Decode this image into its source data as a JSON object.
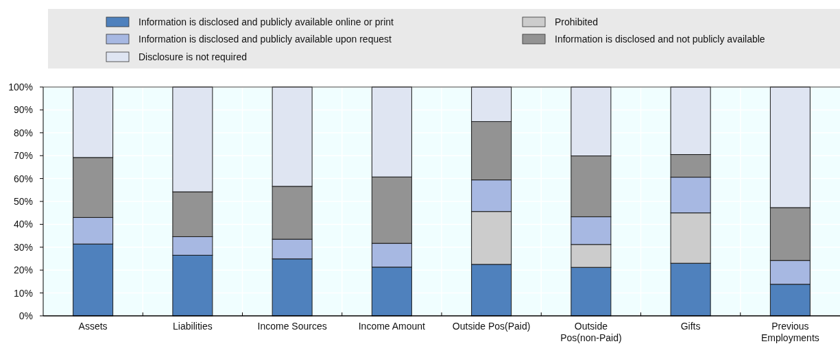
{
  "chart_data": {
    "type": "bar",
    "stacked": true,
    "categories": [
      "Assets",
      "Liabilities",
      "Income Sources",
      "Income Amount",
      "Outside Pos(Paid)",
      "Outside Pos(non-Paid)",
      "Gifts",
      "Previous Employments"
    ],
    "series": [
      {
        "name": "Information is disclosed and publicly available online or print",
        "color": "#4f81bd",
        "values": [
          31.4,
          26.5,
          24.9,
          21.3,
          22.5,
          21.2,
          23,
          13.8
        ]
      },
      {
        "name": "Prohibited",
        "color": "#cccccc",
        "values": [
          0,
          0,
          0,
          0,
          23.1,
          10,
          22,
          0
        ]
      },
      {
        "name": "Information is disclosed and publicly available upon request",
        "color": "#a7b8e2",
        "values": [
          11.6,
          8.1,
          8.6,
          10.4,
          13.8,
          12.1,
          15.6,
          10.4
        ]
      },
      {
        "name": "Information is disclosed and not publicly available",
        "color": "#939393",
        "values": [
          26.2,
          19.6,
          23.1,
          29,
          25.5,
          26.6,
          9.9,
          23.1
        ]
      },
      {
        "name": "Disclosure is not required",
        "color": "#dfe5f2",
        "values": [
          30.8,
          45.8,
          43.4,
          39.3,
          15.1,
          30.1,
          29.5,
          52.7
        ]
      }
    ],
    "ylim": [
      0,
      100
    ],
    "yticks": [
      {
        "value": 0,
        "label": "0%"
      },
      {
        "value": 10,
        "label": "10%"
      },
      {
        "value": 20,
        "label": "20%"
      },
      {
        "value": 30,
        "label": "30%"
      },
      {
        "value": 40,
        "label": "40%"
      },
      {
        "value": 50,
        "label": "50%"
      },
      {
        "value": 60,
        "label": "60%"
      },
      {
        "value": 70,
        "label": "70%"
      },
      {
        "value": 80,
        "label": "80%"
      },
      {
        "value": 90,
        "label": "90%"
      },
      {
        "value": 100,
        "label": "100%"
      }
    ],
    "grid": true,
    "legend": "top"
  }
}
